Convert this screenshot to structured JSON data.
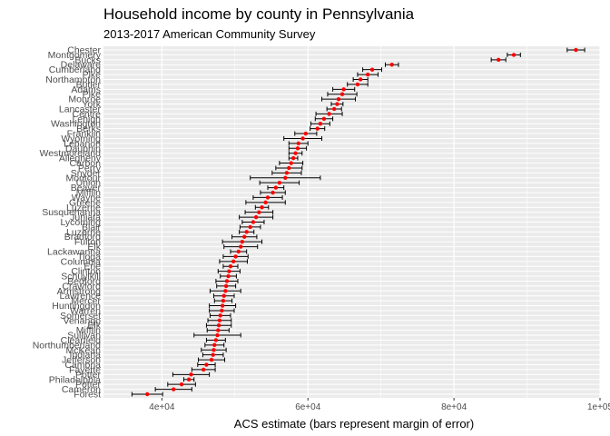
{
  "chart_data": {
    "type": "scatter",
    "title": "Household income by county in Pennsylvania",
    "subtitle": "2013-2017 American Community Survey",
    "xlabel": "ACS estimate (bars represent margin of error)",
    "ylabel": "",
    "xlim": [
      32000,
      100000
    ],
    "x_ticks": [
      40000,
      60000,
      80000,
      100000
    ],
    "x_tick_labels": [
      "4e+04",
      "6e+04",
      "8e+04",
      "1e+05"
    ],
    "grid": true,
    "panel_background": "#ebebeb",
    "grid_color": "#ffffff",
    "point_color": "#ff0000",
    "errorbar_color": "#000000",
    "points": [
      {
        "county": "Chester",
        "estimate": 96700,
        "moe": 1200
      },
      {
        "county": "Montgomery",
        "estimate": 88200,
        "moe": 900
      },
      {
        "county": "Bucks",
        "estimate": 86100,
        "moe": 1000
      },
      {
        "county": "Delaware",
        "estimate": 71500,
        "moe": 900
      },
      {
        "county": "Cumberland",
        "estimate": 68800,
        "moe": 1300
      },
      {
        "county": "Pike",
        "estimate": 68200,
        "moe": 1400
      },
      {
        "county": "Northampton",
        "estimate": 67200,
        "moe": 1000
      },
      {
        "county": "Butler",
        "estimate": 66800,
        "moe": 1400
      },
      {
        "county": "Adams",
        "estimate": 64900,
        "moe": 1500
      },
      {
        "county": "Pike",
        "estimate": 64700,
        "moe": 2000
      },
      {
        "county": "Monroe",
        "estimate": 64200,
        "moe": 2300
      },
      {
        "county": "York",
        "estimate": 64000,
        "moe": 800
      },
      {
        "county": "Lancaster",
        "estimate": 63600,
        "moe": 1000
      },
      {
        "county": "Centre",
        "estimate": 62900,
        "moe": 1800
      },
      {
        "county": "Lehigh",
        "estimate": 62200,
        "moe": 1200
      },
      {
        "county": "Washington",
        "estimate": 61700,
        "moe": 1300
      },
      {
        "county": "Berks",
        "estimate": 61300,
        "moe": 1000
      },
      {
        "county": "Franklin",
        "estimate": 59700,
        "moe": 1500
      },
      {
        "county": "Wyoming",
        "estimate": 59300,
        "moe": 2600
      },
      {
        "county": "Lebanon",
        "estimate": 58700,
        "moe": 1300
      },
      {
        "county": "Dauphin",
        "estimate": 58600,
        "moe": 1200
      },
      {
        "county": "Westmoreland",
        "estimate": 58300,
        "moe": 900
      },
      {
        "county": "Allegheny",
        "estimate": 58000,
        "moe": 600
      },
      {
        "county": "Carbon",
        "estimate": 57700,
        "moe": 1600
      },
      {
        "county": "Perry",
        "estimate": 57400,
        "moe": 1800
      },
      {
        "county": "Snyder",
        "estimate": 57100,
        "moe": 2000
      },
      {
        "county": "Montour",
        "estimate": 56900,
        "moe": 4800
      },
      {
        "county": "Union",
        "estimate": 56100,
        "moe": 2700
      },
      {
        "county": "Beaver",
        "estimate": 55600,
        "moe": 1100
      },
      {
        "county": "Mifflin",
        "estimate": 55200,
        "moe": 1700
      },
      {
        "county": "Wayne",
        "estimate": 54500,
        "moe": 2000
      },
      {
        "county": "Greene",
        "estimate": 54200,
        "moe": 2700
      },
      {
        "county": "Luzerne",
        "estimate": 53700,
        "moe": 900
      },
      {
        "county": "Susquehanna",
        "estimate": 53300,
        "moe": 1900
      },
      {
        "county": "Juniata",
        "estimate": 52900,
        "moe": 2300
      },
      {
        "county": "Lycoming",
        "estimate": 52500,
        "moe": 1500
      },
      {
        "county": "Blair",
        "estimate": 52100,
        "moe": 1400
      },
      {
        "county": "Luzerne",
        "estimate": 51600,
        "moe": 1000
      },
      {
        "county": "Bradford",
        "estimate": 51300,
        "moe": 1700
      },
      {
        "county": "Fulton",
        "estimate": 51000,
        "moe": 2700
      },
      {
        "county": "Elk",
        "estimate": 50800,
        "moe": 2300
      },
      {
        "county": "Lackawanna",
        "estimate": 50500,
        "moe": 1100
      },
      {
        "county": "Tioga",
        "estimate": 50100,
        "moe": 1700
      },
      {
        "county": "Columbia",
        "estimate": 49800,
        "moe": 1900
      },
      {
        "county": "Erie",
        "estimate": 49400,
        "moe": 1000
      },
      {
        "county": "Clinton",
        "estimate": 49200,
        "moe": 1500
      },
      {
        "county": "Schuylkill",
        "estimate": 49100,
        "moe": 1100
      },
      {
        "county": "Bedford",
        "estimate": 48900,
        "moe": 1500
      },
      {
        "county": "Crawford",
        "estimate": 48800,
        "moe": 1300
      },
      {
        "county": "Armstrong",
        "estimate": 48700,
        "moe": 2100
      },
      {
        "county": "Lawrence",
        "estimate": 48500,
        "moe": 1400
      },
      {
        "county": "Mercer",
        "estimate": 48400,
        "moe": 1200
      },
      {
        "county": "Huntingdon",
        "estimate": 48300,
        "moe": 1800
      },
      {
        "county": "Warren",
        "estimate": 48200,
        "moe": 1700
      },
      {
        "county": "Somerset",
        "estimate": 48000,
        "moe": 1400
      },
      {
        "county": "Venango",
        "estimate": 47900,
        "moe": 1600
      },
      {
        "county": "Elk",
        "estimate": 47800,
        "moe": 1700
      },
      {
        "county": "Mifflin",
        "estimate": 47700,
        "moe": 1500
      },
      {
        "county": "Sullivan",
        "estimate": 47600,
        "moe": 3200
      },
      {
        "county": "Clearfield",
        "estimate": 47400,
        "moe": 1300
      },
      {
        "county": "Northumberland",
        "estimate": 47200,
        "moe": 1300
      },
      {
        "county": "McKean",
        "estimate": 47100,
        "moe": 1700
      },
      {
        "county": "Indiana",
        "estimate": 47000,
        "moe": 1400
      },
      {
        "county": "Jefferson",
        "estimate": 46800,
        "moe": 1800
      },
      {
        "county": "Cambria",
        "estimate": 46100,
        "moe": 1200
      },
      {
        "county": "Fayette",
        "estimate": 45700,
        "moe": 1600
      },
      {
        "county": "Potter",
        "estimate": 44000,
        "moe": 2500
      },
      {
        "county": "Philadelphia",
        "estimate": 43700,
        "moe": 700
      },
      {
        "county": "Potter",
        "estimate": 42700,
        "moe": 1900
      },
      {
        "county": "Cameron",
        "estimate": 41600,
        "moe": 2500
      },
      {
        "county": "Forest",
        "estimate": 38000,
        "moe": 2100
      }
    ]
  }
}
